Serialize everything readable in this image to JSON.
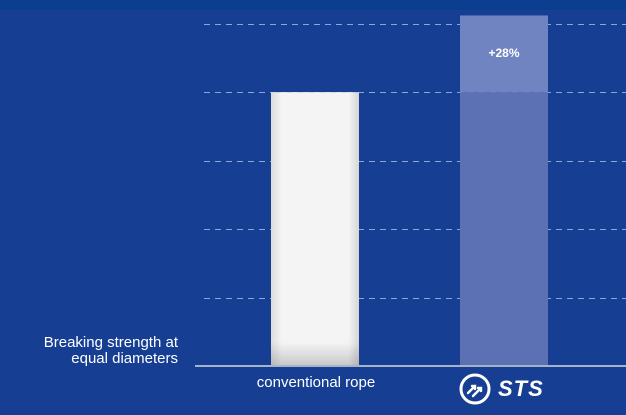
{
  "chart_data": {
    "type": "bar",
    "categories": [
      "conventional rope",
      "STS"
    ],
    "values": [
      100,
      128
    ],
    "ylim": [
      0,
      130
    ],
    "grid": true,
    "ylabel": "Breaking strength at equal diameters",
    "ylabel_lines": [
      "Breaking strength at",
      "equal diameters"
    ],
    "annotation": "+28%",
    "colors": {
      "background": "#163f93",
      "conventional_bar": "#f2f2f2",
      "sts_bar": "#5b71b4",
      "sts_increase": "#6f84c1",
      "grid": "#8ea6d6",
      "axis": "#a9b3c8"
    }
  },
  "brand": {
    "icon": "sts-logo-icon",
    "name": "STS"
  }
}
